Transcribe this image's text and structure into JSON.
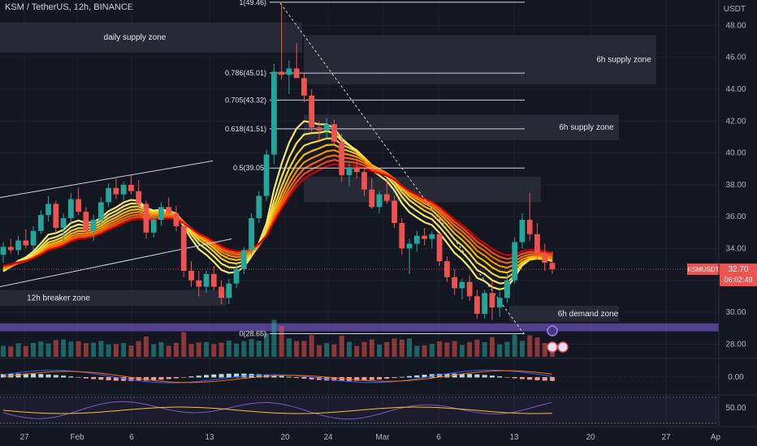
{
  "header": {
    "symbol_line": "KSM / TetherUS, 12h, BINANCE"
  },
  "price_axis": {
    "unit": "USDT",
    "ticks": [
      "48.00",
      "46.00",
      "44.00",
      "42.00",
      "40.00",
      "38.00",
      "36.00",
      "34.00",
      "32.00",
      "30.00",
      "28.00"
    ]
  },
  "time_axis": {
    "ticks": [
      "27",
      "Feb",
      "6",
      "13",
      "20",
      "24",
      "Mar",
      "6",
      "13",
      "20",
      "27",
      "Ap"
    ]
  },
  "last_price": {
    "symbol": "KSMUSDT",
    "price": "32.70",
    "countdown": "06:02:49",
    "color": "#f23645"
  },
  "zones": [
    {
      "label": "daily supply zone"
    },
    {
      "label": "6h supply zone"
    },
    {
      "label": "6h supply zone"
    },
    {
      "label": "12h breaker zone"
    },
    {
      "label": "6h demand zone"
    }
  ],
  "fib_levels": [
    {
      "label": "1(49.46)",
      "value": 49.46
    },
    {
      "label": "0.786(45.01)",
      "value": 45.01
    },
    {
      "label": "0.705(43.32)",
      "value": 43.32
    },
    {
      "label": "0.618(41.51)",
      "value": 41.51
    },
    {
      "label": "0.5(39.05)",
      "value": 39.05
    },
    {
      "label": "0(28.65)",
      "value": 28.65
    }
  ],
  "macd_pane": {
    "ticks": [
      "0.00"
    ]
  },
  "rsi_pane": {
    "ticks": [
      "50.00"
    ]
  },
  "colors": {
    "background": "#131722",
    "up": "#26a69a",
    "down": "#ef5350",
    "ribbon_fast": "#ffeb3b",
    "ribbon_slow": "#d50000",
    "demand_band": "#6a4fb0"
  },
  "chart_data": {
    "type": "candlestick",
    "timeframe": "12h",
    "ylim": [
      27.2,
      49.6
    ],
    "candles_ohlc": [
      [
        33.6,
        34.4,
        33.1,
        34.1
      ],
      [
        34.1,
        34.6,
        33.7,
        33.9
      ],
      [
        33.9,
        34.8,
        33.6,
        34.5
      ],
      [
        34.5,
        35.2,
        34.0,
        34.2
      ],
      [
        34.2,
        35.4,
        33.9,
        35.1
      ],
      [
        35.1,
        36.4,
        34.9,
        36.1
      ],
      [
        36.1,
        37.3,
        35.7,
        36.8
      ],
      [
        36.8,
        37.0,
        35.0,
        35.3
      ],
      [
        35.3,
        36.2,
        34.4,
        35.9
      ],
      [
        35.9,
        37.5,
        35.6,
        37.1
      ],
      [
        37.1,
        37.8,
        36.1,
        36.3
      ],
      [
        36.3,
        36.6,
        34.8,
        35.1
      ],
      [
        35.1,
        36.1,
        34.5,
        35.8
      ],
      [
        35.8,
        37.2,
        35.5,
        36.9
      ],
      [
        36.9,
        38.1,
        36.6,
        37.8
      ],
      [
        37.8,
        38.4,
        37.1,
        37.4
      ],
      [
        37.4,
        38.2,
        37.0,
        38.0
      ],
      [
        38.0,
        38.6,
        37.4,
        37.6
      ],
      [
        37.6,
        38.3,
        36.5,
        36.8
      ],
      [
        36.8,
        37.0,
        34.6,
        35.0
      ],
      [
        35.0,
        36.1,
        34.7,
        35.8
      ],
      [
        35.8,
        36.9,
        35.4,
        36.6
      ],
      [
        36.6,
        37.2,
        35.9,
        36.2
      ],
      [
        36.2,
        36.7,
        35.1,
        35.4
      ],
      [
        35.4,
        35.6,
        32.2,
        32.6
      ],
      [
        32.6,
        33.2,
        31.6,
        32.0
      ],
      [
        32.0,
        32.6,
        31.0,
        31.6
      ],
      [
        31.6,
        32.6,
        31.2,
        32.4
      ],
      [
        32.4,
        32.9,
        31.4,
        31.6
      ],
      [
        31.6,
        32.0,
        30.5,
        30.9
      ],
      [
        30.9,
        32.1,
        30.5,
        31.8
      ],
      [
        31.8,
        33.0,
        31.5,
        32.7
      ],
      [
        32.7,
        34.1,
        32.4,
        33.9
      ],
      [
        33.9,
        36.2,
        33.6,
        35.9
      ],
      [
        35.9,
        37.6,
        35.6,
        37.3
      ],
      [
        37.3,
        40.2,
        37.0,
        39.9
      ],
      [
        39.9,
        45.6,
        39.3,
        45.1
      ],
      [
        45.1,
        49.4,
        44.6,
        44.9
      ],
      [
        44.9,
        45.8,
        43.7,
        45.3
      ],
      [
        45.3,
        46.9,
        44.8,
        44.7
      ],
      [
        44.7,
        45.0,
        43.2,
        43.6
      ],
      [
        43.6,
        44.0,
        41.3,
        41.6
      ],
      [
        41.6,
        42.0,
        40.8,
        41.4
      ],
      [
        41.4,
        42.2,
        40.9,
        41.8
      ],
      [
        41.8,
        42.1,
        40.5,
        40.7
      ],
      [
        40.7,
        41.2,
        38.2,
        38.6
      ],
      [
        38.6,
        39.4,
        37.9,
        39.1
      ],
      [
        39.1,
        39.6,
        38.4,
        38.8
      ],
      [
        38.8,
        39.0,
        37.3,
        37.7
      ],
      [
        37.7,
        38.4,
        36.5,
        36.6
      ],
      [
        36.6,
        37.6,
        36.2,
        37.4
      ],
      [
        37.4,
        38.4,
        36.8,
        37.0
      ],
      [
        37.0,
        37.3,
        35.3,
        35.6
      ],
      [
        35.6,
        35.9,
        33.6,
        34.0
      ],
      [
        34.0,
        34.6,
        32.4,
        34.3
      ],
      [
        34.3,
        35.1,
        33.8,
        34.8
      ],
      [
        34.8,
        35.3,
        34.2,
        34.6
      ],
      [
        34.6,
        35.1,
        34.0,
        34.9
      ],
      [
        34.9,
        35.0,
        32.9,
        33.2
      ],
      [
        33.2,
        33.5,
        31.9,
        32.2
      ],
      [
        32.2,
        32.7,
        31.1,
        31.5
      ],
      [
        31.5,
        32.1,
        30.8,
        31.9
      ],
      [
        31.9,
        32.3,
        30.7,
        31.0
      ],
      [
        31.0,
        31.4,
        29.6,
        29.9
      ],
      [
        29.9,
        31.4,
        29.6,
        31.2
      ],
      [
        31.2,
        32.0,
        29.5,
        30.3
      ],
      [
        30.3,
        31.3,
        29.7,
        30.9
      ],
      [
        30.9,
        32.4,
        30.6,
        32.0
      ],
      [
        32.0,
        34.7,
        31.8,
        34.4
      ],
      [
        34.4,
        36.2,
        34.0,
        35.8
      ],
      [
        35.8,
        37.5,
        34.5,
        34.9
      ],
      [
        34.9,
        35.6,
        33.3,
        33.7
      ],
      [
        33.7,
        34.3,
        32.6,
        33.1
      ],
      [
        33.1,
        33.8,
        32.4,
        32.7
      ]
    ],
    "zones": [
      {
        "label": "daily supply zone",
        "low": 46.3,
        "high": 48.2
      },
      {
        "label": "6h supply zone",
        "low": 44.3,
        "high": 47.4
      },
      {
        "label": "6h supply zone",
        "low": 40.8,
        "high": 42.4
      },
      {
        "label": "12h breaker zone",
        "low": 30.4,
        "high": 31.4
      },
      {
        "label": "6h demand zone",
        "low": 29.4,
        "high": 30.4
      }
    ]
  }
}
